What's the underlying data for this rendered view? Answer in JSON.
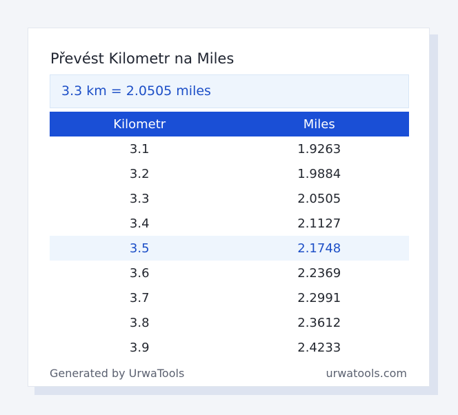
{
  "title": "Převést Kilometr na Miles",
  "result": "3.3 km = 2.0505 miles",
  "table": {
    "headers": [
      "Kilometr",
      "Miles"
    ],
    "rows": [
      {
        "km": "3.1",
        "miles": "1.9263",
        "highlighted": false
      },
      {
        "km": "3.2",
        "miles": "1.9884",
        "highlighted": false
      },
      {
        "km": "3.3",
        "miles": "2.0505",
        "highlighted": false
      },
      {
        "km": "3.4",
        "miles": "2.1127",
        "highlighted": false
      },
      {
        "km": "3.5",
        "miles": "2.1748",
        "highlighted": true
      },
      {
        "km": "3.6",
        "miles": "2.2369",
        "highlighted": false
      },
      {
        "km": "3.7",
        "miles": "2.2991",
        "highlighted": false
      },
      {
        "km": "3.8",
        "miles": "2.3612",
        "highlighted": false
      },
      {
        "km": "3.9",
        "miles": "2.4233",
        "highlighted": false
      }
    ]
  },
  "footer": {
    "generated_by": "Generated by UrwaTools",
    "site": "urwatools.com"
  },
  "colors": {
    "header_bg": "#1a4fd6",
    "accent_text": "#1d4fc7",
    "highlight_bg": "#eef5fd"
  }
}
